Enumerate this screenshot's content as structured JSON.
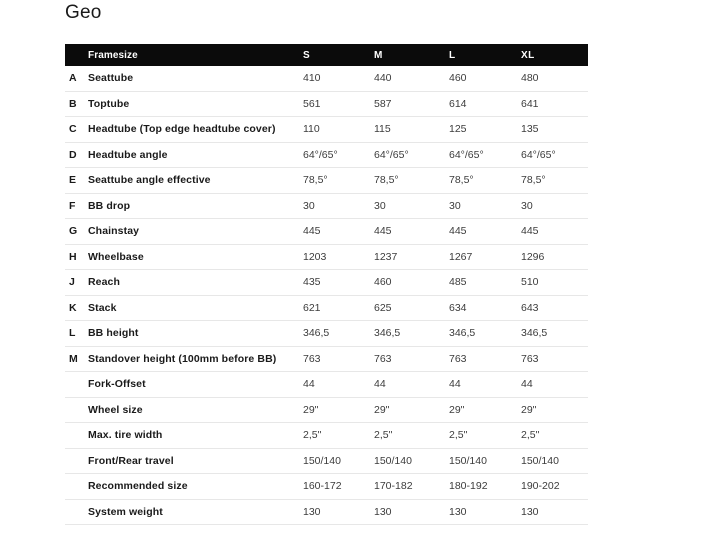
{
  "page": {
    "title": "Geo"
  },
  "table": {
    "header": {
      "framesize_label": "Framesize",
      "sizes": [
        "S",
        "M",
        "L",
        "XL"
      ]
    },
    "rows": [
      {
        "letter": "A",
        "label": "Seattube",
        "values": [
          "410",
          "440",
          "460",
          "480"
        ]
      },
      {
        "letter": "B",
        "label": "Toptube",
        "values": [
          "561",
          "587",
          "614",
          "641"
        ]
      },
      {
        "letter": "C",
        "label": "Headtube (Top edge headtube cover)",
        "values": [
          "110",
          "115",
          "125",
          "135"
        ]
      },
      {
        "letter": "D",
        "label": "Headtube angle",
        "values": [
          "64°/65°",
          "64°/65°",
          "64°/65°",
          "64°/65°"
        ]
      },
      {
        "letter": "E",
        "label": "Seattube angle effective",
        "values": [
          "78,5°",
          "78,5°",
          "78,5°",
          "78,5°"
        ]
      },
      {
        "letter": "F",
        "label": "BB drop",
        "values": [
          "30",
          "30",
          "30",
          "30"
        ]
      },
      {
        "letter": "G",
        "label": "Chainstay",
        "values": [
          "445",
          "445",
          "445",
          "445"
        ]
      },
      {
        "letter": "H",
        "label": "Wheelbase",
        "values": [
          "1203",
          "1237",
          "1267",
          "1296"
        ]
      },
      {
        "letter": "J",
        "label": "Reach",
        "values": [
          "435",
          "460",
          "485",
          "510"
        ]
      },
      {
        "letter": "K",
        "label": "Stack",
        "values": [
          "621",
          "625",
          "634",
          "643"
        ]
      },
      {
        "letter": "L",
        "label": "BB height",
        "values": [
          "346,5",
          "346,5",
          "346,5",
          "346,5"
        ]
      },
      {
        "letter": "M",
        "label": "Standover height (100mm before BB)",
        "values": [
          "763",
          "763",
          "763",
          "763"
        ]
      },
      {
        "letter": "",
        "label": "Fork-Offset",
        "values": [
          "44",
          "44",
          "44",
          "44"
        ]
      },
      {
        "letter": "",
        "label": "Wheel size",
        "values": [
          "29\"",
          "29\"",
          "29\"",
          "29\""
        ]
      },
      {
        "letter": "",
        "label": "Max. tire width",
        "values": [
          "2,5\"",
          "2,5\"",
          "2,5\"",
          "2,5\""
        ]
      },
      {
        "letter": "",
        "label": "Front/Rear travel",
        "values": [
          "150/140",
          "150/140",
          "150/140",
          "150/140"
        ]
      },
      {
        "letter": "",
        "label": "Recommended size",
        "values": [
          "160-172",
          "170-182",
          "180-192",
          "190-202"
        ]
      },
      {
        "letter": "",
        "label": "System weight",
        "values": [
          "130",
          "130",
          "130",
          "130"
        ]
      }
    ]
  },
  "colors": {
    "header_bg": "#0b0b0b",
    "header_text": "#ffffff",
    "label_text": "#1a1a1a",
    "value_text": "#3c3c3c",
    "separator": "#e7e7e7",
    "background": "#ffffff"
  }
}
